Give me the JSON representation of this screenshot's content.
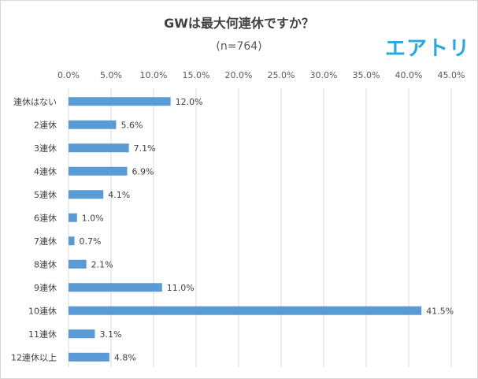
{
  "title": "GWは最大何連休ですか？",
  "subtitle": "(n=764)",
  "brand": "エアトリ",
  "colors": {
    "bar": "#5b9bd5",
    "grid": "#d9d9d9",
    "text": "#404040",
    "brand": "#29a8df"
  },
  "chart_data": {
    "type": "bar",
    "orientation": "horizontal",
    "title": "GWは最大何連休ですか？",
    "subtitle": "(n=764)",
    "categories": [
      "連休はない",
      "2連休",
      "3連休",
      "4連休",
      "5連休",
      "6連休",
      "7連休",
      "8連休",
      "9連休",
      "10連休",
      "11連休",
      "12連休以上"
    ],
    "values": [
      12.0,
      5.6,
      7.1,
      6.9,
      4.1,
      1.0,
      0.7,
      2.1,
      11.0,
      41.5,
      3.1,
      4.8
    ],
    "value_labels": [
      "12.0%",
      "5.6%",
      "7.1%",
      "6.9%",
      "4.1%",
      "1.0%",
      "0.7%",
      "2.1%",
      "11.0%",
      "41.5%",
      "3.1%",
      "4.8%"
    ],
    "xlim": [
      0,
      45
    ],
    "x_ticks": [
      "0.0%",
      "5.0%",
      "10.0%",
      "15.0%",
      "20.0%",
      "25.0%",
      "30.0%",
      "35.0%",
      "40.0%",
      "45.0%"
    ],
    "x_axis_position": "top",
    "grid": true,
    "legend": false
  }
}
